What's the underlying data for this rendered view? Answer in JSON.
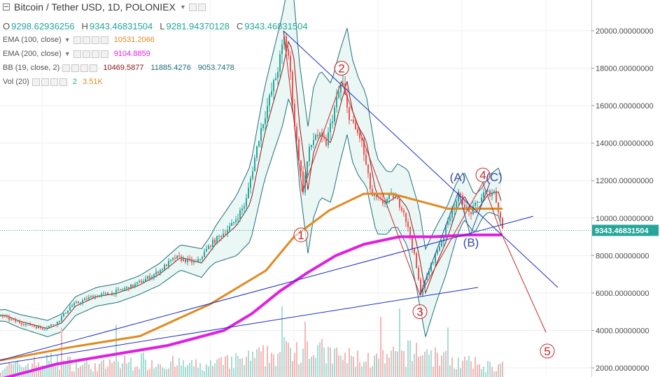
{
  "header": {
    "title": "Bitcoin / Tether USD, 1D, POLONIEX",
    "ohlc": {
      "o": "9298.62936256",
      "h": "9343.46831504",
      "l": "9281.94370128",
      "c": "9343.46831504"
    },
    "ohlc_prefix": {
      "o": "O",
      "h": "H",
      "l": "L",
      "c": "C"
    }
  },
  "indicators": [
    {
      "label": "EMA (100, close)",
      "values": [
        "10531.2066"
      ],
      "color": "#e08a22"
    },
    {
      "label": "EMA (200, close)",
      "values": [
        "9104.8859"
      ],
      "color": "#e020e0"
    },
    {
      "label": "BB (19, close, 2)",
      "values": [
        "10469.5877",
        "11885.4276",
        "9053.7478"
      ],
      "colors": [
        "#8b1a1a",
        "#1f6f7a",
        "#1f6f7a"
      ]
    },
    {
      "label": "Vol (20)",
      "values": [
        "2",
        "3.51K"
      ],
      "colors": [
        "#26a69a",
        "#e08a22"
      ]
    }
  ],
  "price_label": "9343.46831504",
  "chart_data": {
    "type": "line",
    "title": "Bitcoin / Tether USD, 1D, POLONIEX",
    "ylim": [
      1200,
      20900
    ],
    "y_ticks": [
      "2000.00000000",
      "4000.00000000",
      "6000.00000000",
      "8000.00000000",
      "10000.00000000",
      "12000.00000000",
      "14000.00000000",
      "16000.00000000",
      "18000.00000000",
      "20000.00000000"
    ],
    "y_tick_values": [
      2000,
      4000,
      6000,
      8000,
      10000,
      12000,
      14000,
      16000,
      18000,
      20000
    ],
    "last_price": 9343.47,
    "grid": true,
    "colors": {
      "up": "#26a69a",
      "down": "#ef5350",
      "ema100": "#e08a22",
      "ema200": "#e020e0",
      "bb_mid": "#8b1a1a",
      "bb_band": "#1f6f7a",
      "bb_fill": "#e8f6f4",
      "trend": "#1d2fc0",
      "elliott": "#c62828",
      "corrective": "#3b4a9e"
    },
    "price_anchors": [
      [
        0,
        4800
      ],
      [
        20,
        4500
      ],
      [
        40,
        4300
      ],
      [
        60,
        4100
      ],
      [
        80,
        4400
      ],
      [
        100,
        5300
      ],
      [
        130,
        5800
      ],
      [
        160,
        6000
      ],
      [
        190,
        6400
      ],
      [
        220,
        7000
      ],
      [
        250,
        7900
      ],
      [
        280,
        7600
      ],
      [
        300,
        8600
      ],
      [
        330,
        9600
      ],
      [
        350,
        10800
      ],
      [
        370,
        14500
      ],
      [
        385,
        16500
      ],
      [
        395,
        17800
      ],
      [
        405,
        19600
      ],
      [
        412,
        18500
      ],
      [
        420,
        15000
      ],
      [
        432,
        11500
      ],
      [
        440,
        13500
      ],
      [
        450,
        14500
      ],
      [
        465,
        14000
      ],
      [
        478,
        16000
      ],
      [
        488,
        17300
      ],
      [
        495,
        15800
      ],
      [
        505,
        14800
      ],
      [
        515,
        14200
      ],
      [
        530,
        11200
      ],
      [
        545,
        10800
      ],
      [
        560,
        11200
      ],
      [
        575,
        10500
      ],
      [
        590,
        8200
      ],
      [
        600,
        6000
      ],
      [
        615,
        7500
      ],
      [
        630,
        8800
      ],
      [
        645,
        10500
      ],
      [
        655,
        11200
      ],
      [
        670,
        10200
      ],
      [
        690,
        11300
      ],
      [
        705,
        11400
      ],
      [
        712,
        10300
      ],
      [
        718,
        9300
      ]
    ],
    "series": [
      {
        "name": "EMA (100, close)",
        "values": [
          [
            0,
            2400
          ],
          [
            100,
            3100
          ],
          [
            200,
            3700
          ],
          [
            300,
            5400
          ],
          [
            380,
            7200
          ],
          [
            420,
            9000
          ],
          [
            470,
            10400
          ],
          [
            520,
            11300
          ],
          [
            560,
            11300
          ],
          [
            600,
            10900
          ],
          [
            640,
            10500
          ],
          [
            680,
            10500
          ],
          [
            718,
            10500
          ]
        ]
      },
      {
        "name": "EMA (200, close)",
        "values": [
          [
            0,
            1400
          ],
          [
            80,
            2200
          ],
          [
            160,
            2700
          ],
          [
            240,
            3200
          ],
          [
            320,
            4000
          ],
          [
            360,
            4900
          ],
          [
            400,
            6100
          ],
          [
            440,
            7100
          ],
          [
            480,
            8000
          ],
          [
            520,
            8600
          ],
          [
            570,
            9000
          ],
          [
            620,
            9000
          ],
          [
            670,
            9100
          ],
          [
            718,
            9100
          ]
        ]
      }
    ],
    "volume_anchors": [
      [
        20,
        2
      ],
      [
        70,
        3
      ],
      [
        140,
        2
      ],
      [
        200,
        3
      ],
      [
        290,
        2
      ],
      [
        340,
        3
      ],
      [
        380,
        4
      ],
      [
        410,
        5
      ],
      [
        432,
        6
      ],
      [
        470,
        4
      ],
      [
        540,
        3
      ],
      [
        600,
        5
      ],
      [
        640,
        3
      ],
      [
        700,
        2
      ]
    ],
    "bb_width_anchors": [
      [
        0,
        300
      ],
      [
        100,
        500
      ],
      [
        200,
        500
      ],
      [
        300,
        800
      ],
      [
        380,
        2500
      ],
      [
        405,
        3000
      ],
      [
        450,
        3500
      ],
      [
        520,
        2500
      ],
      [
        560,
        1500
      ],
      [
        600,
        2500
      ],
      [
        650,
        1500
      ],
      [
        690,
        800
      ],
      [
        718,
        1400
      ]
    ],
    "trendlines": [
      {
        "from": [
          405,
          20000
        ],
        "to": [
          797,
          6300
        ]
      },
      {
        "from": [
          0,
          2400
        ],
        "to": [
          762,
          10100
        ]
      },
      {
        "from": [
          0,
          2200
        ],
        "to": [
          683,
          6300
        ]
      }
    ],
    "elliott_path": [
      [
        405,
        20000
      ],
      [
        432,
        11400
      ],
      [
        488,
        17300
      ],
      [
        600,
        5900
      ],
      [
        690,
        11900
      ],
      [
        715,
        9300
      ],
      [
        780,
        3900
      ]
    ],
    "corrective_path": [
      [
        600,
        5900
      ],
      [
        655,
        11400
      ],
      [
        672,
        9100
      ],
      [
        700,
        11900
      ]
    ],
    "wave_labels": [
      {
        "text": "1",
        "at": [
          430,
          9100
        ],
        "style": "circle"
      },
      {
        "text": "2",
        "at": [
          488,
          18000
        ],
        "style": "circle"
      },
      {
        "text": "3",
        "at": [
          600,
          5000
        ],
        "style": "circle"
      },
      {
        "text": "4",
        "at": [
          690,
          12300
        ],
        "style": "circle"
      },
      {
        "text": "5",
        "at": [
          782,
          2900
        ],
        "style": "circle"
      },
      {
        "text": "(A)",
        "at": [
          654,
          12200
        ],
        "style": "plain"
      },
      {
        "text": "(B)",
        "at": [
          673,
          8700
        ],
        "style": "plain"
      },
      {
        "text": "(C)",
        "at": [
          706,
          12200
        ],
        "style": "plain"
      }
    ]
  }
}
